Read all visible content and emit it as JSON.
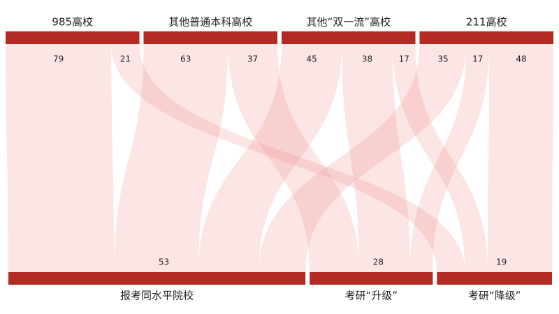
{
  "chart_data": {
    "type": "sankey",
    "bar_color": "#b22a22",
    "flow_color": "#f08a8a",
    "sources": [
      {
        "name": "985高校",
        "flows": [
          {
            "target": "报考同水平院校",
            "value": 79
          },
          {
            "target": "考研“降级”",
            "value": 21
          }
        ]
      },
      {
        "name": "其他普通本科高校",
        "flows": [
          {
            "target": "报考同水平院校",
            "value": 63
          },
          {
            "target": "考研“升级”",
            "value": 37
          }
        ]
      },
      {
        "name": "其他“双一流”高校",
        "flows": [
          {
            "target": "报考同水平院校",
            "value": 45
          },
          {
            "target": "考研“升级”",
            "value": 38
          },
          {
            "target": "考研“降级”",
            "value": 17
          }
        ]
      },
      {
        "name": "211高校",
        "flows": [
          {
            "target": "报考同水平院校",
            "value": 35
          },
          {
            "target": "考研“升级”",
            "value": 17
          },
          {
            "target": "考研“降级”",
            "value": 48
          }
        ]
      }
    ],
    "targets": [
      {
        "name": "报考同水平院校",
        "value": 53
      },
      {
        "name": "考研“升级”",
        "value": 28
      },
      {
        "name": "考研“降级”",
        "value": 19
      }
    ]
  }
}
